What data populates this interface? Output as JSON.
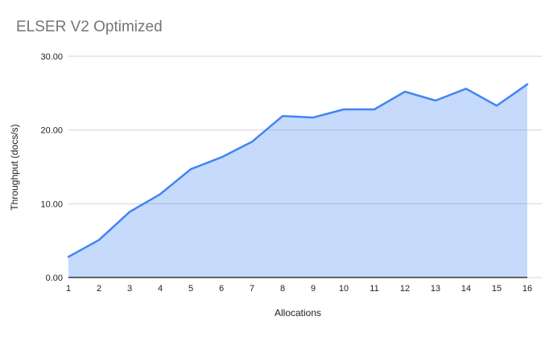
{
  "title": "ELSER V2 Optimized",
  "colors": {
    "line": "#4285f4",
    "fill": "rgba(66,133,244,0.30)",
    "gridline": "#d5d5d5",
    "axis_line": "#333333",
    "tick_text": "#1f1f1f",
    "title_text": "#757575",
    "background": "#ffffff"
  },
  "chart_data": {
    "type": "area",
    "title": "ELSER V2 Optimized",
    "xlabel": "Allocations",
    "ylabel": "Throughput (docs/s)",
    "x": [
      1,
      2,
      3,
      4,
      5,
      6,
      7,
      8,
      9,
      10,
      11,
      12,
      13,
      14,
      15,
      16
    ],
    "x_tick_labels": [
      "1",
      "2",
      "3",
      "4",
      "5",
      "6",
      "7",
      "8",
      "9",
      "10",
      "11",
      "12",
      "13",
      "14",
      "15",
      "16"
    ],
    "series": [
      {
        "name": "Throughput (docs/s)",
        "values": [
          2.8,
          5.1,
          8.9,
          11.3,
          14.7,
          16.3,
          18.4,
          21.9,
          21.7,
          22.8,
          22.8,
          25.2,
          24.0,
          25.6,
          23.3,
          26.2
        ]
      }
    ],
    "ylim": [
      0,
      30
    ],
    "y_tick_values": [
      0,
      10,
      20,
      30
    ],
    "y_tick_labels": [
      "0.00",
      "10.00",
      "20.00",
      "30.00"
    ],
    "grid": true,
    "legend": "none"
  }
}
